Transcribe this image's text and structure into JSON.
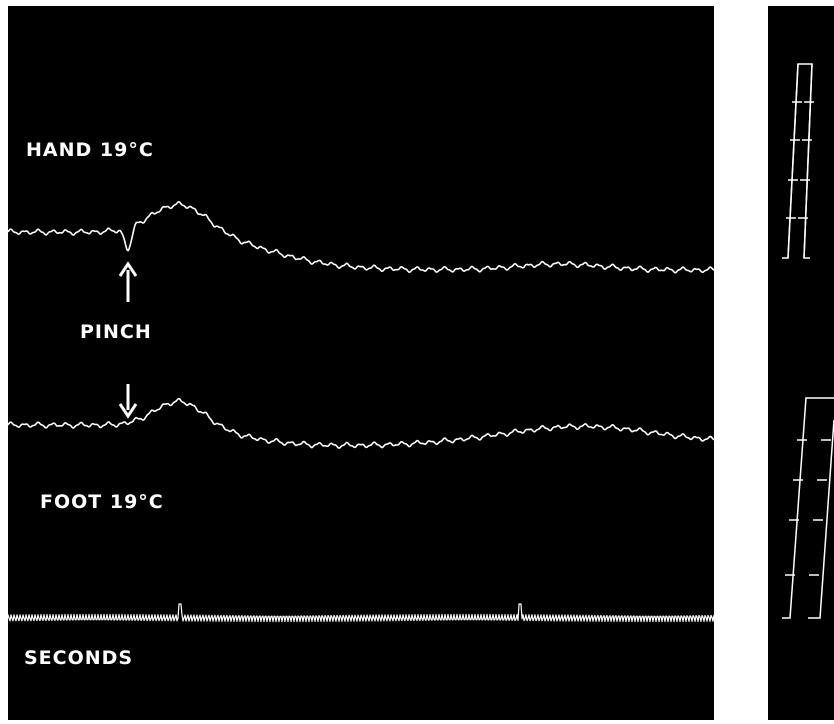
{
  "labels": {
    "hand": "HAND  19°C",
    "pinch": "PINCH",
    "foot": "FOOT  19°C",
    "seconds": "SECONDS"
  },
  "chart_data": {
    "type": "line",
    "title": "",
    "xlabel": "",
    "ylabel": "",
    "grid": false,
    "annotations": [
      "PINCH"
    ],
    "series": [
      {
        "name": "HAND  19°C",
        "description_values": "baseline, dip at pinch, rise to peak, slow decline to plateau"
      },
      {
        "name": "FOOT  19°C",
        "description_values": "baseline, rise at pinch, decline, second broad rise later"
      },
      {
        "name": "SECONDS",
        "description_values": "time marker trace"
      }
    ]
  }
}
